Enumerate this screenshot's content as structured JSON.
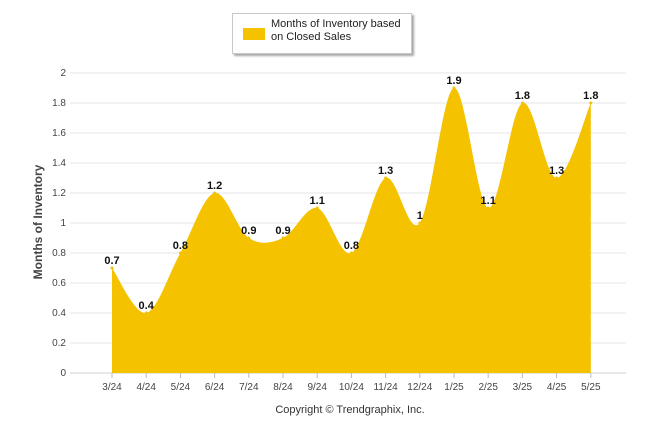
{
  "chart_data": {
    "type": "area",
    "categories": [
      "3/24",
      "4/24",
      "5/24",
      "6/24",
      "7/24",
      "8/24",
      "9/24",
      "10/24",
      "11/24",
      "12/24",
      "1/25",
      "2/25",
      "3/25",
      "4/25",
      "5/25"
    ],
    "series": [
      {
        "name": "Months of Inventory based on Closed Sales",
        "values": [
          0.7,
          0.4,
          0.8,
          1.2,
          0.9,
          0.9,
          1.1,
          0.8,
          1.3,
          1,
          1.9,
          1.1,
          1.8,
          1.3,
          1.8
        ],
        "labels": [
          "0.7",
          "0.4",
          "0.8",
          "1.2",
          "0.9",
          "0.9",
          "1.1",
          "0.8",
          "1.3",
          "1",
          "1.9",
          "1.1",
          "1.8",
          "1.3",
          "1.8"
        ],
        "color": "#F5C200"
      }
    ],
    "ylabel": "Months of Inventory",
    "ylim": [
      0,
      2
    ],
    "yticks": [
      "0",
      "0.2",
      "0.4",
      "0.6",
      "0.8",
      "1",
      "1.2",
      "1.4",
      "1.6",
      "1.8",
      "2"
    ],
    "grid": true,
    "legend": "top-center"
  },
  "footer": {
    "copyright": "Copyright © Trendgraphix, Inc."
  }
}
